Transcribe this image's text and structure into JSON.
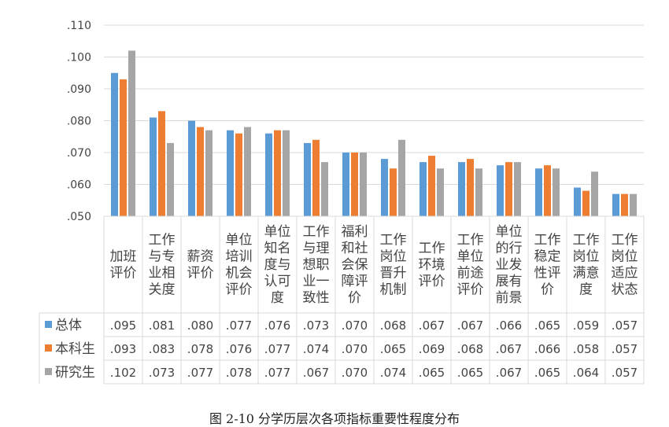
{
  "chart_data": {
    "type": "bar",
    "title": "",
    "xlabel": "",
    "ylabel": "",
    "ylim": [
      0.05,
      0.11
    ],
    "yticks": [
      ".050",
      ".060",
      ".070",
      ".080",
      ".090",
      ".100",
      ".110"
    ],
    "ytick_values": [
      0.05,
      0.06,
      0.07,
      0.08,
      0.09,
      0.1,
      0.11
    ],
    "grid": true,
    "legend": "data-table-left",
    "categories": [
      "加班评价",
      "工作与专业相关度",
      "薪资评价",
      "单位培训机会评价",
      "单位知名度与认可度",
      "工作与理想职业一致性",
      "福利和社会保障评价",
      "工作岗位晋升机制",
      "工作环境评价",
      "工作单位前途评价",
      "单位的行业发展有前景",
      "工作稳定性评价",
      "工作岗位满意度",
      "工作岗位适应状态"
    ],
    "series": [
      {
        "name": "总体",
        "color": "#5b9bd5",
        "values": [
          0.095,
          0.081,
          0.08,
          0.077,
          0.076,
          0.073,
          0.07,
          0.068,
          0.067,
          0.067,
          0.066,
          0.065,
          0.059,
          0.057
        ],
        "labels": [
          ".095",
          ".081",
          ".080",
          ".077",
          ".076",
          ".073",
          ".070",
          ".068",
          ".067",
          ".067",
          ".066",
          ".065",
          ".059",
          ".057"
        ]
      },
      {
        "name": "本科生",
        "color": "#ed7d31",
        "values": [
          0.093,
          0.083,
          0.078,
          0.076,
          0.077,
          0.074,
          0.07,
          0.065,
          0.069,
          0.068,
          0.067,
          0.066,
          0.058,
          0.057
        ],
        "labels": [
          ".093",
          ".083",
          ".078",
          ".076",
          ".077",
          ".074",
          ".070",
          ".065",
          ".069",
          ".068",
          ".067",
          ".066",
          ".058",
          ".057"
        ]
      },
      {
        "name": "研究生",
        "color": "#a5a5a5",
        "values": [
          0.102,
          0.073,
          0.077,
          0.078,
          0.077,
          0.067,
          0.07,
          0.074,
          0.065,
          0.065,
          0.067,
          0.065,
          0.064,
          0.057
        ],
        "labels": [
          ".102",
          ".073",
          ".077",
          ".078",
          ".077",
          ".067",
          ".070",
          ".074",
          ".065",
          ".065",
          ".067",
          ".065",
          ".064",
          ".057"
        ]
      }
    ]
  },
  "caption": "图 2-10 分学历层次各项指标重要性程度分布"
}
